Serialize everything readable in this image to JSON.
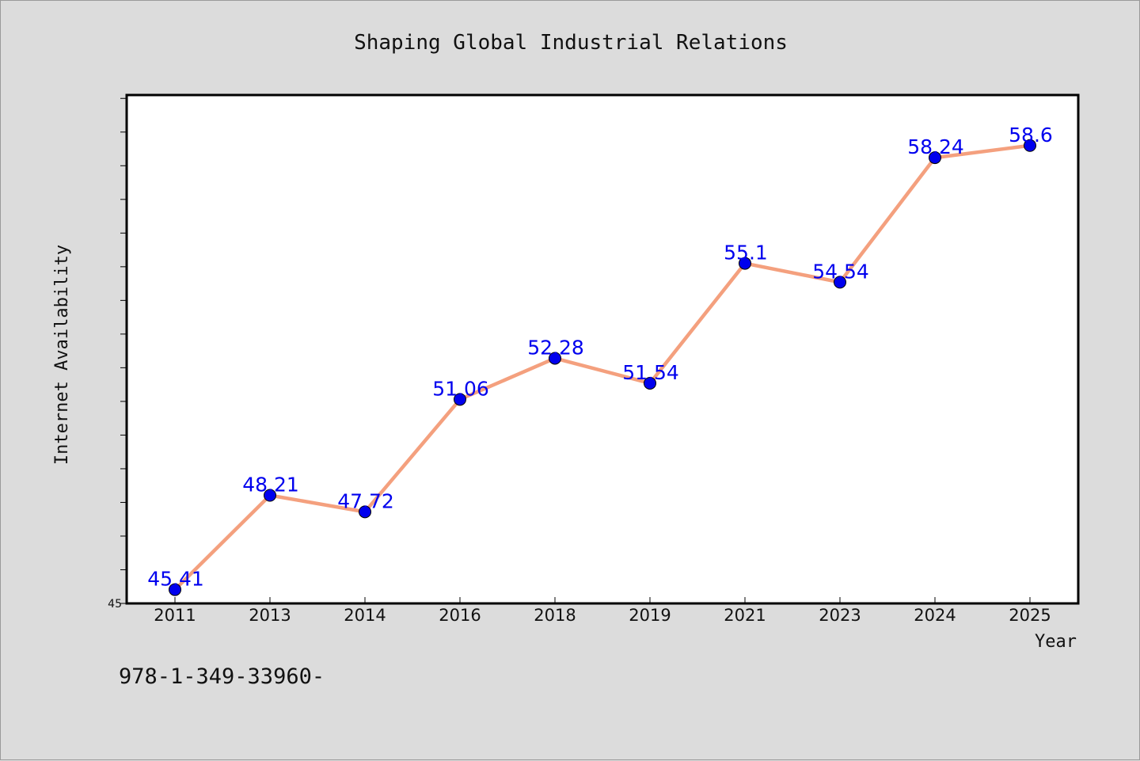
{
  "footer": {
    "text": "978-1-349-33960-"
  },
  "colors": {
    "background": "#dcdcdc",
    "plot_background": "#ffffff",
    "line": "#f4a07e",
    "marker": "#0000ee",
    "data_label": "#0000ee"
  },
  "chart_data": {
    "type": "line",
    "title": "Shaping Global Industrial Relations",
    "xlabel": "Year",
    "ylabel": "Internet Availability",
    "categories": [
      "2011",
      "2013",
      "2014",
      "2016",
      "2018",
      "2019",
      "2021",
      "2023",
      "2024",
      "2025"
    ],
    "values": [
      45.41,
      48.21,
      47.72,
      51.06,
      52.28,
      51.54,
      55.1,
      54.54,
      58.24,
      58.6
    ],
    "data_labels": [
      "45.41",
      "48.21",
      "47.72",
      "51.06",
      "52.28",
      "51.54",
      "55.1",
      "54.54",
      "58.24",
      "58.6"
    ],
    "yticks": [
      45
    ],
    "ytick_labels": [
      "45"
    ],
    "ylim": [
      45,
      60.1
    ],
    "minor_ytick_step": 1,
    "grid": false,
    "legend": "none",
    "marker": "circle"
  }
}
